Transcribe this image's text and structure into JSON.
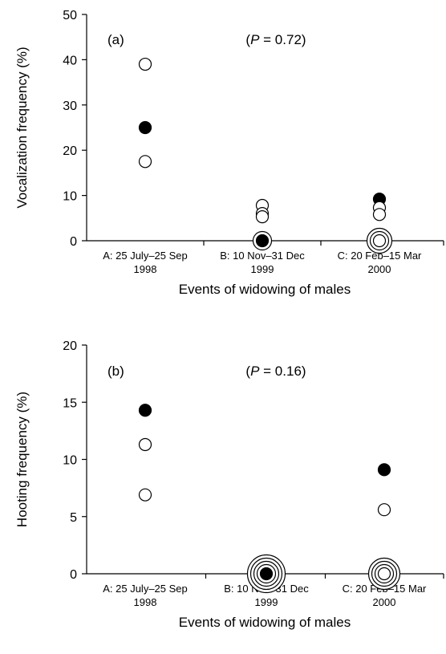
{
  "chart_data": [
    {
      "type": "scatter",
      "panel_label": "(a)",
      "annotation": "(P = 0.72)",
      "annotation_parts": [
        "(",
        "P",
        " = 0.72)"
      ],
      "ylabel": "Vocalization frequency (%)",
      "xlabel": "Events of widowing of males",
      "ylim": [
        0,
        50
      ],
      "yticks": [
        0,
        10,
        20,
        30,
        40,
        50
      ],
      "categories": [
        [
          "A: 25 July–25 Sep",
          "1998"
        ],
        [
          "B: 10 Nov–31 Dec",
          "1999"
        ],
        [
          "C: 20 Feb–15 Mar",
          "2000"
        ]
      ],
      "points": [
        {
          "cat": 0,
          "y": 39,
          "filled": false,
          "count": 1
        },
        {
          "cat": 0,
          "y": 25,
          "filled": true,
          "count": 1
        },
        {
          "cat": 0,
          "y": 17.5,
          "filled": false,
          "count": 1
        },
        {
          "cat": 1,
          "y": 7.8,
          "filled": false,
          "count": 1
        },
        {
          "cat": 1,
          "y": 6,
          "filled": false,
          "count": 1
        },
        {
          "cat": 1,
          "y": 5.3,
          "filled": false,
          "count": 1
        },
        {
          "cat": 1,
          "y": 0,
          "filled": true,
          "count": 2
        },
        {
          "cat": 2,
          "y": 9.2,
          "filled": true,
          "count": 1
        },
        {
          "cat": 2,
          "y": 7.3,
          "filled": false,
          "count": 1
        },
        {
          "cat": 2,
          "y": 5.8,
          "filled": false,
          "count": 1
        },
        {
          "cat": 2,
          "y": 0,
          "filled": false,
          "count": 3
        }
      ]
    },
    {
      "type": "scatter",
      "panel_label": "(b)",
      "annotation": "(P = 0.16)",
      "annotation_parts": [
        "(",
        "P",
        " = 0.16)"
      ],
      "ylabel": "Hooting frequency (%)",
      "xlabel": "Events of widowing of males",
      "ylim": [
        0,
        20
      ],
      "yticks": [
        0,
        5,
        10,
        15,
        20
      ],
      "categories": [
        [
          "A: 25 July–25 Sep",
          "1998"
        ],
        [
          "B: 10 Nov–31 Dec",
          "1999"
        ],
        [
          "C: 20 Feb–15 Mar",
          "2000"
        ]
      ],
      "points": [
        {
          "cat": 0,
          "y": 14.3,
          "filled": true,
          "count": 1
        },
        {
          "cat": 0,
          "y": 11.3,
          "filled": false,
          "count": 1
        },
        {
          "cat": 0,
          "y": 6.9,
          "filled": false,
          "count": 1
        },
        {
          "cat": 1,
          "y": 0,
          "filled": true,
          "count": 5
        },
        {
          "cat": 2,
          "y": 9.1,
          "filled": true,
          "count": 1
        },
        {
          "cat": 2,
          "y": 5.6,
          "filled": false,
          "count": 1
        },
        {
          "cat": 2,
          "y": 0,
          "filled": false,
          "count": 4
        }
      ]
    }
  ]
}
